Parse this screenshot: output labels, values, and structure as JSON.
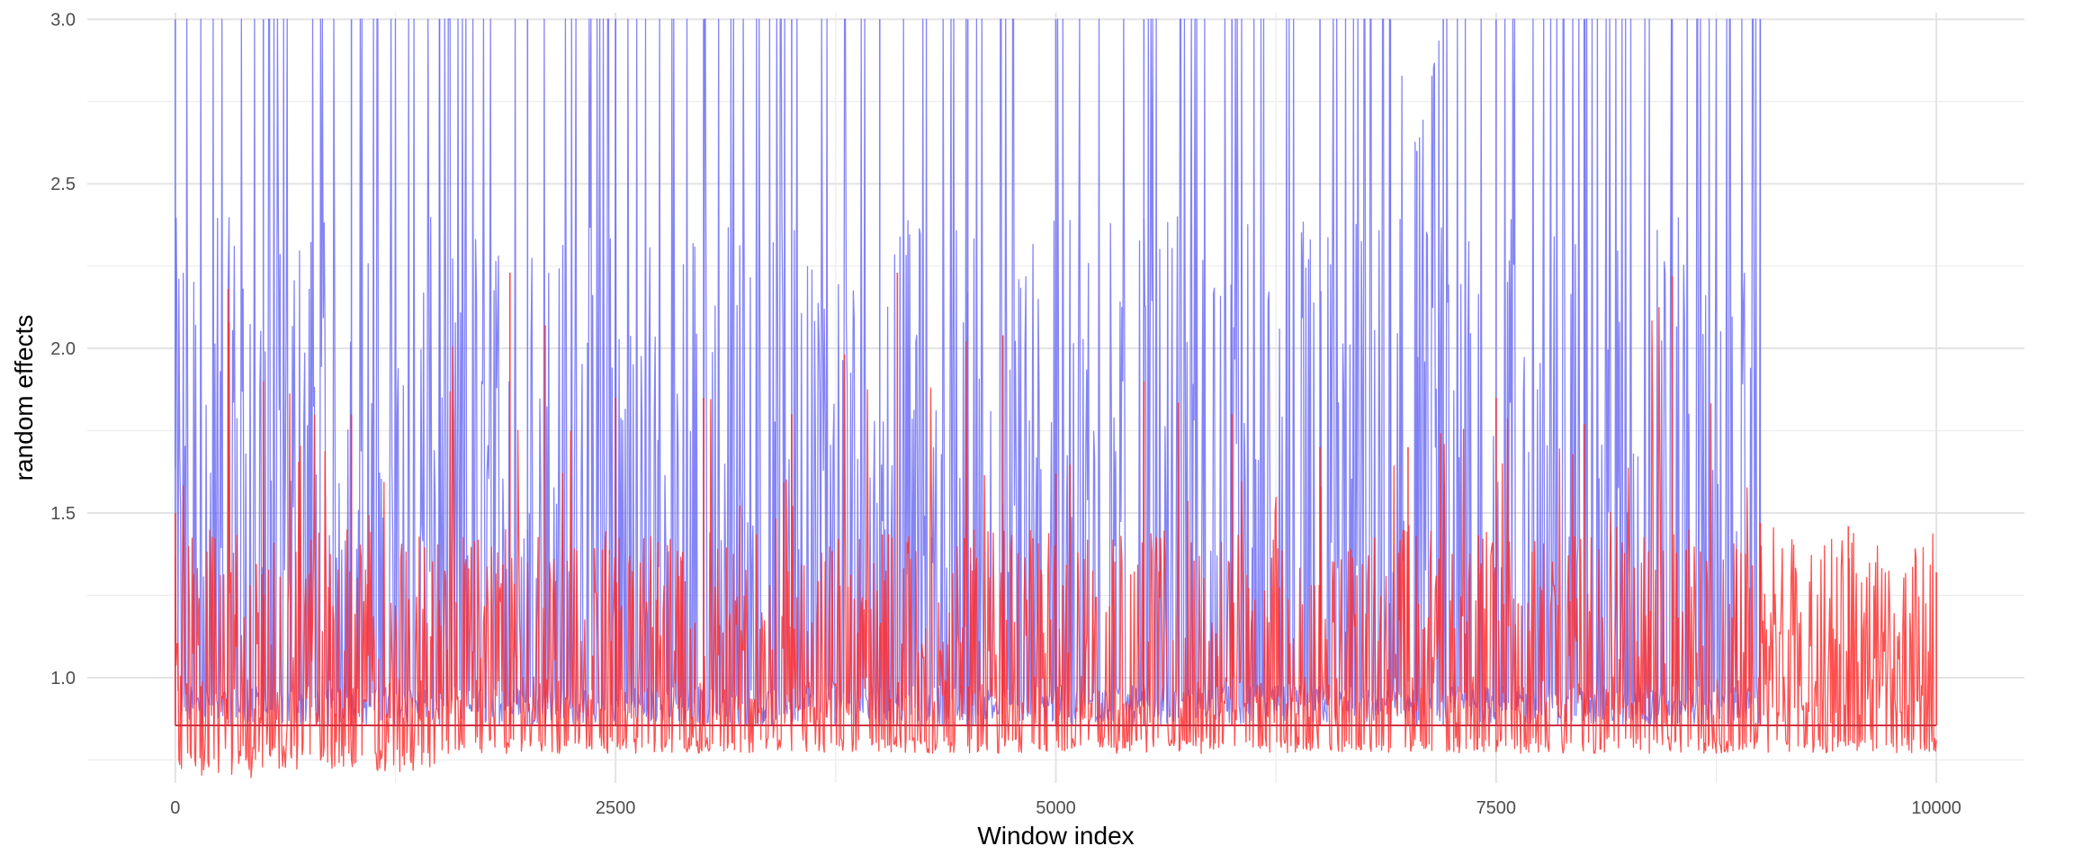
{
  "chart_data": {
    "type": "line",
    "title": "",
    "xlabel": "Window index",
    "ylabel": "random effects",
    "xlim": [
      -500,
      10500
    ],
    "ylim": [
      0.68,
      3.02
    ],
    "x_ticks": [
      {
        "value": 0,
        "label": "0"
      },
      {
        "value": 2500,
        "label": "2500"
      },
      {
        "value": 5000,
        "label": "5000"
      },
      {
        "value": 7500,
        "label": "7500"
      },
      {
        "value": 10000,
        "label": "10000"
      }
    ],
    "y_ticks": [
      {
        "value": 1.0,
        "label": "1.0"
      },
      {
        "value": 1.5,
        "label": "1.5"
      },
      {
        "value": 2.0,
        "label": "2.0"
      },
      {
        "value": 2.5,
        "label": "2.5"
      },
      {
        "value": 3.0,
        "label": "3.0"
      }
    ],
    "grid": true,
    "legend": "none",
    "series": [
      {
        "color": "#6f6ff5",
        "x_range": [
          0,
          9000
        ],
        "baseline": 0.855,
        "cap": 3.0,
        "typical_peaks": [
          1.3,
          2.4
        ],
        "envelope": [
          {
            "x": 0,
            "y": 3.0
          },
          {
            "x": 500,
            "y": 3.0
          },
          {
            "x": 1000,
            "y": 3.0
          },
          {
            "x": 1500,
            "y": 3.0
          },
          {
            "x": 2000,
            "y": 3.0
          },
          {
            "x": 2500,
            "y": 3.0
          },
          {
            "x": 3000,
            "y": 3.0
          },
          {
            "x": 3500,
            "y": 3.0
          },
          {
            "x": 4000,
            "y": 3.0
          },
          {
            "x": 4500,
            "y": 3.0
          },
          {
            "x": 5000,
            "y": 3.0
          },
          {
            "x": 5500,
            "y": 3.0
          },
          {
            "x": 6000,
            "y": 3.0
          },
          {
            "x": 6500,
            "y": 3.0
          },
          {
            "x": 6900,
            "y": 3.0
          },
          {
            "x": 7050,
            "y": 2.6
          },
          {
            "x": 7200,
            "y": 3.0
          },
          {
            "x": 7500,
            "y": 3.0
          },
          {
            "x": 8000,
            "y": 3.0
          },
          {
            "x": 8500,
            "y": 3.0
          },
          {
            "x": 9000,
            "y": 3.0
          }
        ]
      },
      {
        "color": "#ff2a2a",
        "x_range": [
          0,
          10000
        ],
        "baseline": 0.855,
        "floor": 0.82,
        "typical_peaks": [
          1.05,
          1.45
        ],
        "envelope": [
          {
            "x": 0,
            "y": 1.5
          },
          {
            "x": 300,
            "y": 2.18
          },
          {
            "x": 500,
            "y": 1.9
          },
          {
            "x": 1000,
            "y": 1.8
          },
          {
            "x": 1900,
            "y": 2.23
          },
          {
            "x": 2100,
            "y": 2.07
          },
          {
            "x": 2500,
            "y": 1.85
          },
          {
            "x": 3000,
            "y": 1.85
          },
          {
            "x": 3500,
            "y": 1.8
          },
          {
            "x": 4100,
            "y": 2.23
          },
          {
            "x": 4700,
            "y": 2.04
          },
          {
            "x": 5000,
            "y": 1.62
          },
          {
            "x": 5500,
            "y": 1.9
          },
          {
            "x": 6000,
            "y": 1.8
          },
          {
            "x": 6500,
            "y": 1.7
          },
          {
            "x": 7000,
            "y": 1.7
          },
          {
            "x": 7500,
            "y": 1.85
          },
          {
            "x": 8000,
            "y": 1.77
          },
          {
            "x": 8500,
            "y": 2.22
          },
          {
            "x": 9000,
            "y": 1.47
          },
          {
            "x": 9500,
            "y": 1.46
          },
          {
            "x": 10000,
            "y": 1.32
          }
        ]
      }
    ]
  }
}
